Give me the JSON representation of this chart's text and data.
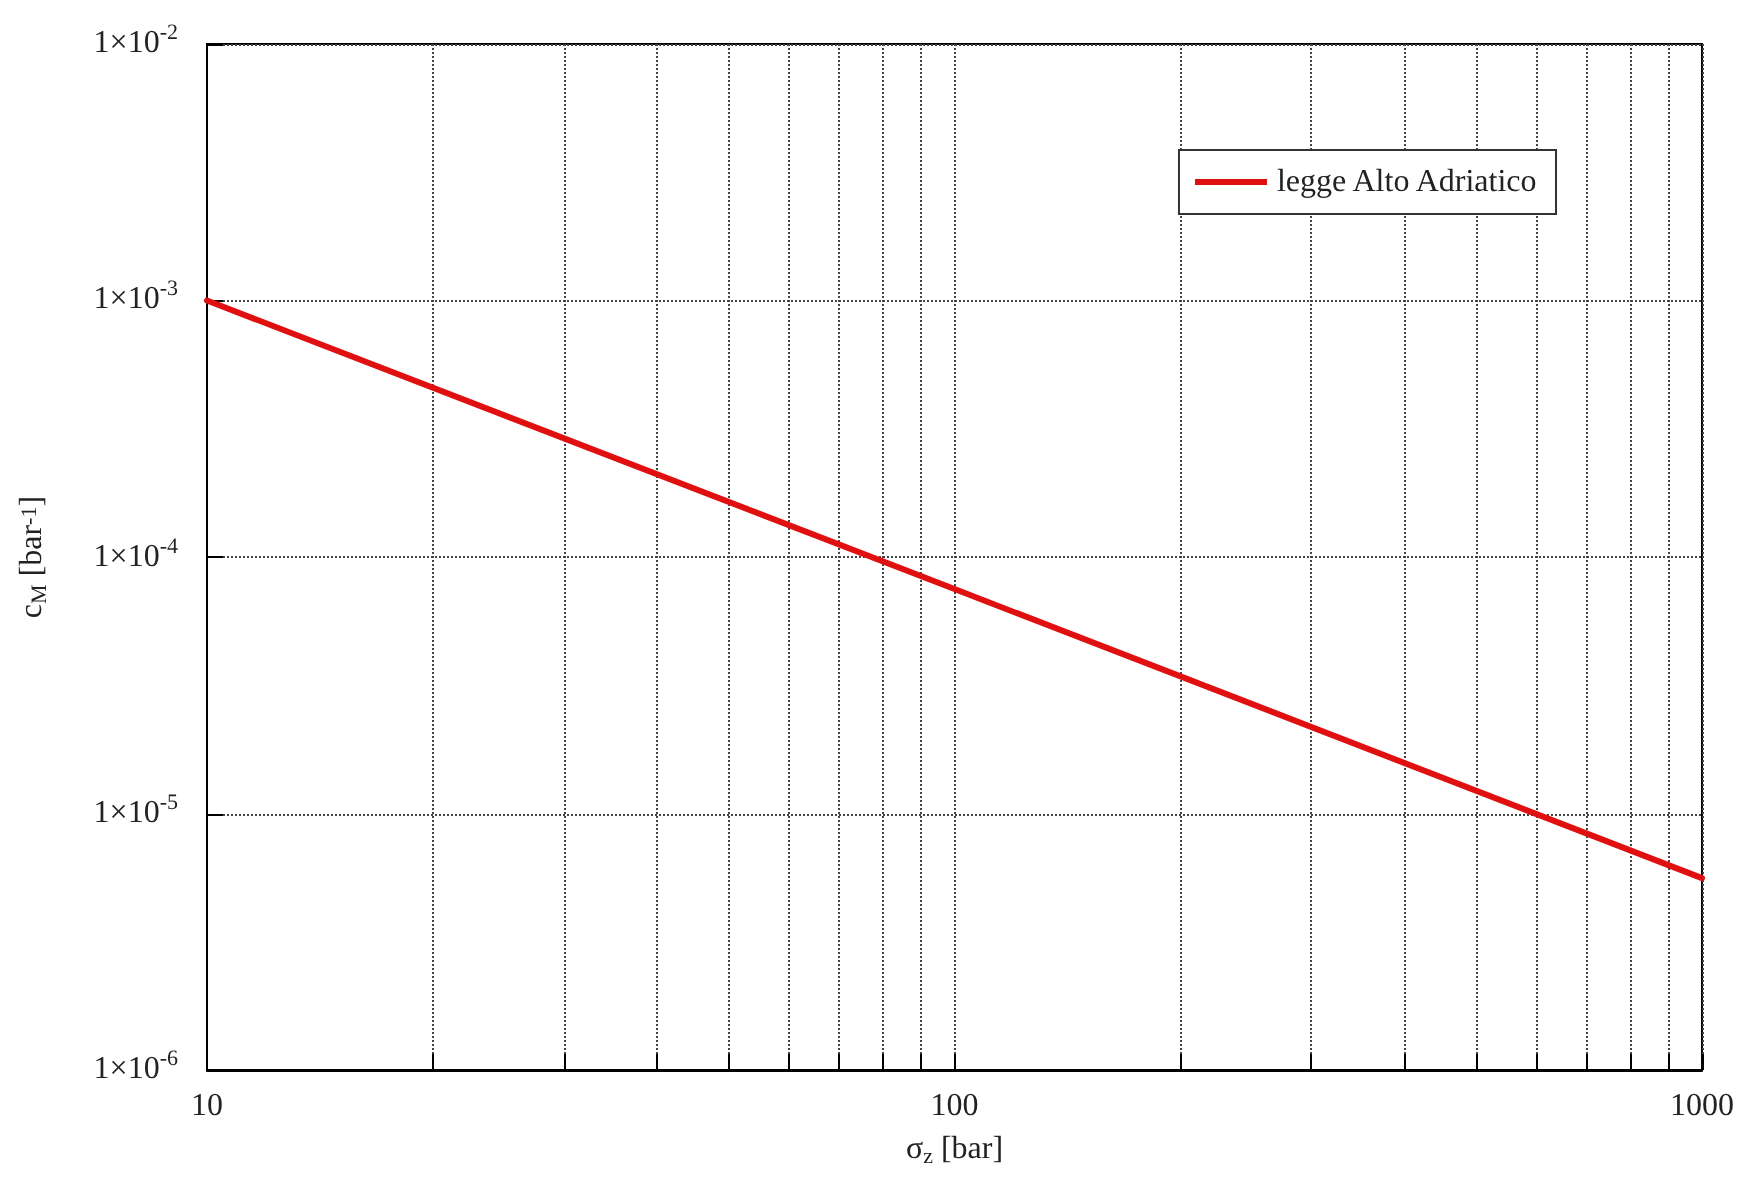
{
  "chart_data": {
    "type": "line",
    "xlabel": "σ$_{z}$ [bar]",
    "ylabel": "c$_{M}$ [bar$^{-1}$]",
    "x": [
      10,
      100,
      1000
    ],
    "series": [
      {
        "name": "legge Alto Adriatico",
        "color": "#e01010",
        "values": [
          0.001,
          7.5e-05,
          5.6e-06
        ]
      }
    ],
    "log": "xy",
    "xlim": [
      10,
      1000
    ],
    "ylim": [
      1e-06,
      0.01
    ],
    "xticks": [
      10,
      {
        "value": 20,
        "label": null
      },
      {
        "value": 30,
        "label": null
      },
      {
        "value": 40,
        "label": null
      },
      {
        "value": 50,
        "label": null
      },
      {
        "value": 60,
        "label": null
      },
      {
        "value": 70,
        "label": null
      },
      {
        "value": 80,
        "label": null
      },
      {
        "value": 90,
        "label": null
      },
      100,
      {
        "value": 200,
        "label": null
      },
      {
        "value": 300,
        "label": null
      },
      {
        "value": 400,
        "label": null
      },
      {
        "value": 500,
        "label": null
      },
      {
        "value": 600,
        "label": null
      },
      {
        "value": 700,
        "label": null
      },
      {
        "value": 800,
        "label": null
      },
      {
        "value": 900,
        "label": null
      },
      1000
    ],
    "yticks": [
      {
        "value": 1e-06,
        "label": "1×10$^{-6}$"
      },
      {
        "value": 1e-05,
        "label": "1×10$^{-5}$"
      },
      {
        "value": 0.0001,
        "label": "1×10$^{-4}$"
      },
      {
        "value": 0.001,
        "label": "1×10$^{-3}$"
      },
      {
        "value": 0.01,
        "label": "1×10$^{-2}$"
      }
    ],
    "grid": true,
    "legend": "top right",
    "marker": "none",
    "line_style": "solid"
  }
}
